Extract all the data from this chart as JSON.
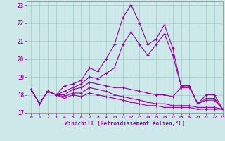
{
  "xlabel": "Windchill (Refroidissement éolien,°C)",
  "background_color": "#cce8e8",
  "line_color": "#990099",
  "grid_color": "#99cccc",
  "xlim": [
    -0.5,
    23
  ],
  "ylim": [
    17,
    23.2
  ],
  "yticks": [
    17,
    18,
    19,
    20,
    21,
    22,
    23
  ],
  "xticks": [
    0,
    1,
    2,
    3,
    4,
    5,
    6,
    7,
    8,
    9,
    10,
    11,
    12,
    13,
    14,
    15,
    16,
    17,
    18,
    19,
    20,
    21,
    22,
    23
  ],
  "line1_x": [
    0,
    1,
    2,
    3,
    4,
    5,
    6,
    7,
    8,
    9,
    10,
    11,
    12,
    13,
    14,
    15,
    16,
    17,
    18,
    19,
    20,
    21,
    22,
    23
  ],
  "line1_y": [
    18.3,
    17.5,
    18.2,
    18.0,
    18.5,
    18.6,
    18.8,
    19.5,
    19.3,
    20.0,
    20.8,
    22.3,
    23.0,
    22.0,
    20.8,
    21.1,
    21.9,
    20.6,
    18.5,
    18.5,
    17.5,
    18.0,
    18.0,
    17.2
  ],
  "line2_x": [
    0,
    1,
    2,
    3,
    4,
    5,
    6,
    7,
    8,
    9,
    10,
    11,
    12,
    13,
    14,
    15,
    16,
    17,
    18,
    19,
    20,
    21,
    22,
    23
  ],
  "line2_y": [
    18.3,
    17.5,
    18.2,
    18.0,
    18.2,
    18.4,
    18.6,
    19.0,
    18.9,
    19.2,
    19.5,
    20.8,
    21.5,
    20.8,
    20.2,
    20.8,
    21.4,
    20.2,
    18.5,
    18.5,
    17.5,
    17.8,
    17.8,
    17.2
  ],
  "line3_x": [
    0,
    1,
    2,
    3,
    4,
    5,
    6,
    7,
    8,
    9,
    10,
    11,
    12,
    13,
    14,
    15,
    16,
    17,
    18,
    19,
    20,
    21,
    22,
    23
  ],
  "line3_y": [
    18.3,
    17.5,
    18.2,
    18.0,
    18.0,
    18.3,
    18.4,
    18.7,
    18.6,
    18.5,
    18.4,
    18.4,
    18.3,
    18.2,
    18.1,
    18.0,
    18.0,
    17.9,
    18.4,
    18.4,
    17.5,
    17.7,
    17.7,
    17.2
  ],
  "line4_x": [
    0,
    1,
    2,
    3,
    4,
    5,
    6,
    7,
    8,
    9,
    10,
    11,
    12,
    13,
    14,
    15,
    16,
    17,
    18,
    19,
    20,
    21,
    22,
    23
  ],
  "line4_y": [
    18.3,
    17.5,
    18.2,
    18.0,
    17.9,
    18.1,
    18.1,
    18.4,
    18.3,
    18.2,
    18.0,
    17.9,
    17.8,
    17.7,
    17.6,
    17.5,
    17.5,
    17.4,
    17.4,
    17.4,
    17.3,
    17.3,
    17.3,
    17.2
  ],
  "line5_x": [
    0,
    1,
    2,
    3,
    4,
    5,
    6,
    7,
    8,
    9,
    10,
    11,
    12,
    13,
    14,
    15,
    16,
    17,
    18,
    19,
    20,
    21,
    22,
    23
  ],
  "line5_y": [
    18.3,
    17.5,
    18.2,
    18.0,
    17.8,
    18.0,
    17.9,
    18.1,
    18.0,
    17.9,
    17.8,
    17.7,
    17.6,
    17.5,
    17.4,
    17.4,
    17.3,
    17.3,
    17.3,
    17.3,
    17.2,
    17.2,
    17.2,
    17.2
  ]
}
